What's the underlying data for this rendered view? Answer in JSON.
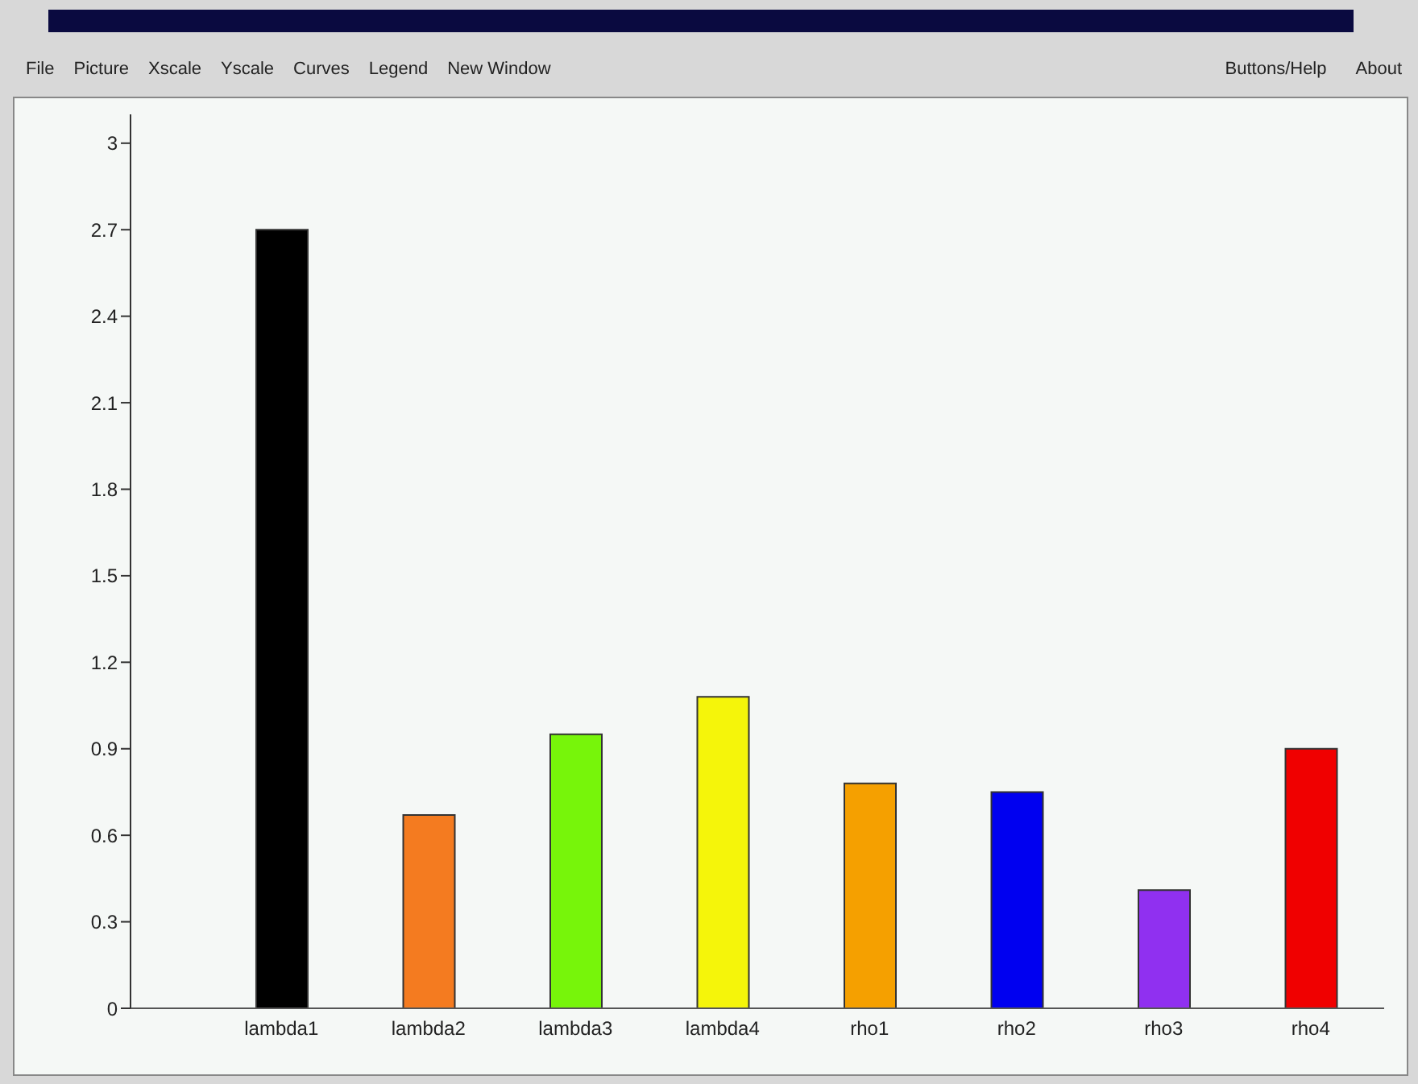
{
  "chart_data": {
    "type": "bar",
    "categories": [
      "lambda1",
      "lambda2",
      "lambda3",
      "lambda4",
      "rho1",
      "rho2",
      "rho3",
      "rho4"
    ],
    "values": [
      2.7,
      0.67,
      0.95,
      1.08,
      0.78,
      0.75,
      0.41,
      0.9
    ],
    "colors": [
      "#000000",
      "#f47b20",
      "#77f50a",
      "#f5f50a",
      "#f5a000",
      "#0000f0",
      "#9030f0",
      "#f00000"
    ],
    "ylim": [
      0,
      3.1
    ],
    "yticks": [
      0,
      0.3,
      0.6,
      0.9,
      1.2,
      1.5,
      1.8,
      2.1,
      2.4,
      2.7,
      3
    ],
    "grid": false,
    "legend": false,
    "annotations": [
      "File",
      "Picture",
      "Xscale",
      "Yscale",
      "Curves",
      "Legend",
      "New Window",
      "Buttons/Help",
      "About"
    ]
  }
}
